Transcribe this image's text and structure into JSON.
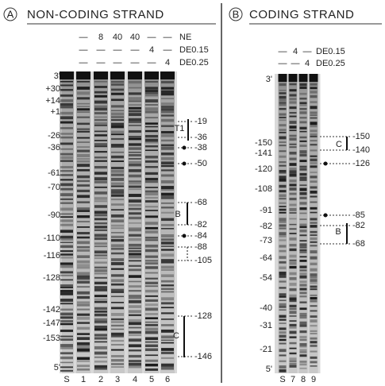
{
  "panel_a": {
    "letter": "A",
    "title": "NON-CODING STRAND",
    "treatments": [
      {
        "label": "NE",
        "lanes": [
          "—",
          "8",
          "40",
          "40",
          "—",
          "—"
        ]
      },
      {
        "label": "DE0.15",
        "lanes": [
          "—",
          "—",
          "—",
          "—",
          "4",
          "—"
        ]
      },
      {
        "label": "DE0.25",
        "lanes": [
          "—",
          "—",
          "—",
          "—",
          "—",
          "4"
        ]
      }
    ],
    "left_markers": [
      "3'",
      "+30",
      "+14",
      "+1",
      "-26",
      "-36",
      "-61",
      "-70",
      "-90",
      "-110",
      "-116",
      "-128",
      "-142",
      "-147",
      "-153",
      "5'"
    ],
    "right_markers": [
      "-19",
      "-36",
      "-38",
      "-50",
      "-68",
      "-82",
      "-84",
      "-88",
      "-105",
      "-128",
      "-146"
    ],
    "regions": [
      "T1",
      "B",
      "C"
    ],
    "lanes": [
      "S",
      "1",
      "2",
      "3",
      "4",
      "5",
      "6"
    ]
  },
  "panel_b": {
    "letter": "B",
    "title": "CODING STRAND",
    "treatments": [
      {
        "label": "DE0.15",
        "lanes": [
          "—",
          "4",
          "—"
        ]
      },
      {
        "label": "DE0.25",
        "lanes": [
          "—",
          "—",
          "4"
        ]
      }
    ],
    "left_markers": [
      "3'",
      "-150",
      "-141",
      "-120",
      "-108",
      "-91",
      "-82",
      "-73",
      "-64",
      "-54",
      "-40",
      "-31",
      "-21",
      "5'"
    ],
    "right_markers": [
      "-150",
      "-140",
      "-126",
      "-85",
      "-82",
      "-68"
    ],
    "regions": [
      "C",
      "B"
    ],
    "lanes": [
      "S",
      "7",
      "8",
      "9"
    ]
  }
}
